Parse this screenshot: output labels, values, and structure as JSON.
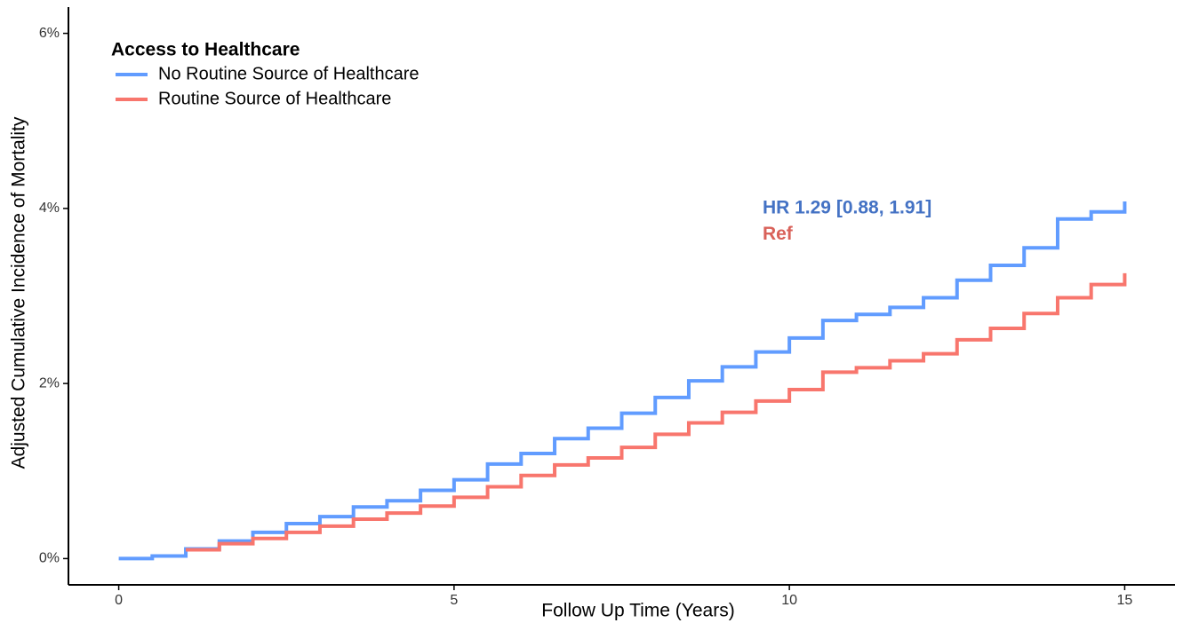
{
  "chart_data": {
    "type": "line",
    "step": "post",
    "y_label": "Adjusted Cumulative Incidence of Mortality",
    "x_label": "Follow Up Time (Years)",
    "legend_title": "Access to Healthcare",
    "legend_position": "top-left",
    "annotations": [
      {
        "text": "HR 1.29 [0.88, 1.91]",
        "color": "#4472c4",
        "x": 9.6,
        "y": 4.0
      },
      {
        "text": "Ref",
        "color": "#d9625a",
        "x": 9.6,
        "y": 3.7
      }
    ],
    "x": [
      0,
      0.5,
      1,
      1.5,
      2,
      2.5,
      3,
      3.5,
      4,
      4.5,
      5,
      5.5,
      6,
      6.5,
      7,
      7.5,
      8,
      8.5,
      9,
      9.5,
      10,
      10.5,
      11,
      11.5,
      12,
      12.5,
      13,
      13.5,
      14,
      14.5,
      15
    ],
    "series": [
      {
        "name": "No Routine Source of Healthcare",
        "color": "#619cff",
        "values": [
          0,
          0.03,
          0.11,
          0.2,
          0.3,
          0.4,
          0.48,
          0.59,
          0.66,
          0.78,
          0.9,
          1.08,
          1.2,
          1.37,
          1.49,
          1.66,
          1.84,
          2.03,
          2.19,
          2.36,
          2.52,
          2.72,
          2.79,
          2.87,
          2.98,
          3.18,
          3.35,
          3.55,
          3.88,
          3.96,
          4.08
        ]
      },
      {
        "name": "Routine Source of Healthcare",
        "color": "#f8766d",
        "values": [
          null,
          null,
          0.1,
          0.17,
          0.23,
          0.3,
          0.37,
          0.45,
          0.52,
          0.6,
          0.7,
          0.82,
          0.95,
          1.07,
          1.15,
          1.27,
          1.42,
          1.55,
          1.67,
          1.8,
          1.93,
          2.13,
          2.18,
          2.26,
          2.34,
          2.5,
          2.63,
          2.8,
          2.98,
          3.13,
          3.26
        ]
      }
    ],
    "xlim": [
      -0.75,
      15.75
    ],
    "xticks": [
      0,
      5,
      10,
      15
    ],
    "ylim": [
      -0.3,
      6.3
    ],
    "yticks": [
      {
        "value": 0,
        "label": "0%"
      },
      {
        "value": 2,
        "label": "2%"
      },
      {
        "value": 4,
        "label": "4%"
      },
      {
        "value": 6,
        "label": "6%"
      }
    ],
    "grid": false
  }
}
